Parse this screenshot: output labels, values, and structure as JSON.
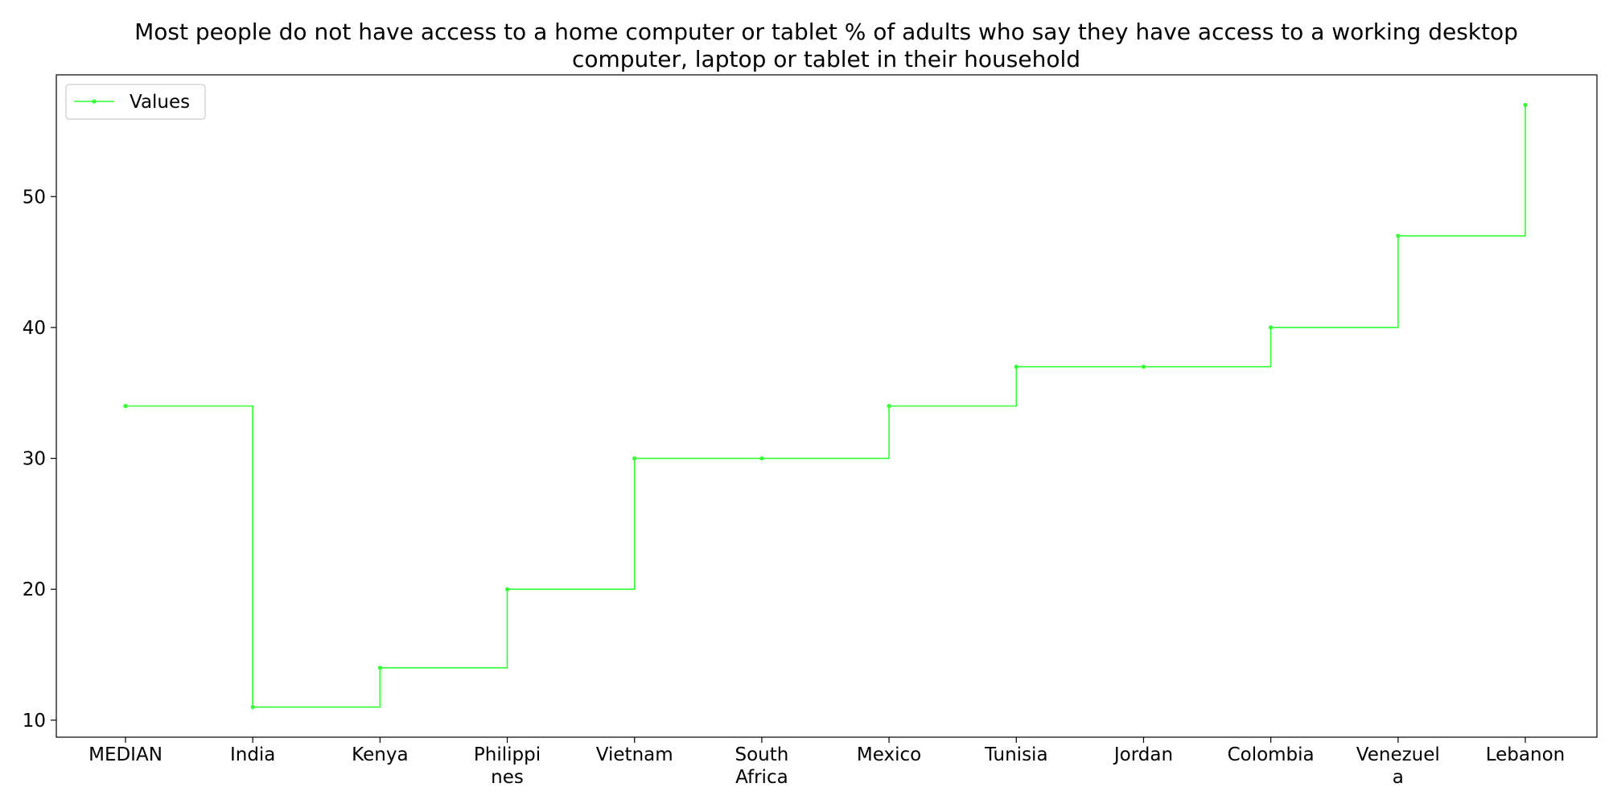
{
  "chart_data": {
    "type": "line",
    "step": "post",
    "title_lines": [
      "Most people do not have access to a home computer or tablet % of adults who say they have access to a working desktop",
      "computer, laptop or tablet in their household"
    ],
    "xlabel": "",
    "ylabel": "",
    "categories": [
      "MEDIAN",
      "India",
      "Kenya",
      "Philippines",
      "Vietnam",
      "South Africa",
      "Mexico",
      "Tunisia",
      "Jordan",
      "Colombia",
      "Venezuela",
      "Lebanon"
    ],
    "category_tick_lines": [
      [
        "MEDIAN"
      ],
      [
        "India"
      ],
      [
        "Kenya"
      ],
      [
        "Philippi",
        "nes"
      ],
      [
        "Vietnam"
      ],
      [
        "South",
        "Africa"
      ],
      [
        "Mexico"
      ],
      [
        "Tunisia"
      ],
      [
        "Jordan"
      ],
      [
        "Colombia"
      ],
      [
        "Venezuel",
        "a"
      ],
      [
        "Lebanon"
      ]
    ],
    "series": [
      {
        "name": "Values",
        "color": "#33ff33",
        "values": [
          34,
          11,
          14,
          20,
          30,
          30,
          34,
          37,
          37,
          40,
          47,
          57
        ]
      }
    ],
    "ylim": [
      8.7,
      59.3
    ],
    "yticks": [
      10,
      20,
      30,
      40,
      50
    ],
    "grid": false,
    "legend_position": "upper-left"
  }
}
